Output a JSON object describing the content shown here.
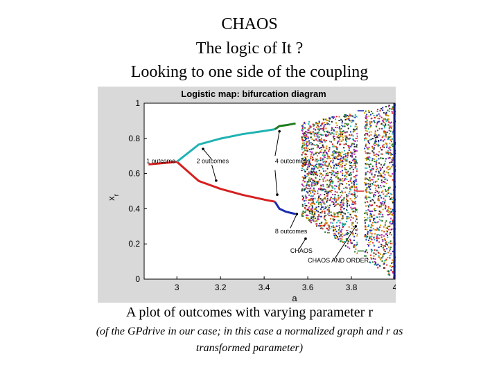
{
  "slide": {
    "title_lines": [
      "CHAOS",
      "The logic of It ?",
      "Looking to one side of the coupling"
    ],
    "caption": "A plot of outcomes with varying parameter r",
    "note_lines": [
      "(of the GPdrive in our case; in this case a normalized graph and r as",
      "transformed parameter)"
    ]
  },
  "chart_data": {
    "type": "scatter",
    "title": "Logistic map: bifurcation diagram",
    "xlabel": "a",
    "ylabel": "x_r",
    "xlim": [
      2.85,
      4.0
    ],
    "ylim": [
      0,
      1
    ],
    "x_ticks": [
      "3",
      "3.2",
      "3.4",
      "3.6",
      "3.8",
      "4"
    ],
    "y_ticks": [
      "0",
      "0.2",
      "0.4",
      "0.6",
      "0.8",
      "1"
    ],
    "grid": false,
    "background": "#d9d9d9",
    "plot_background": "#ffffff",
    "series": [
      {
        "color": "#d62020",
        "points": [
          [
            2.87,
            0.652
          ],
          [
            2.95,
            0.661
          ],
          [
            3.0,
            0.667
          ],
          [
            3.1,
            0.558
          ],
          [
            3.2,
            0.513
          ],
          [
            3.3,
            0.479
          ],
          [
            3.4,
            0.452
          ],
          [
            3.449,
            0.44
          ]
        ]
      },
      {
        "color": "#20b2b2",
        "points": [
          [
            3.0,
            0.667
          ],
          [
            3.1,
            0.765
          ],
          [
            3.2,
            0.799
          ],
          [
            3.3,
            0.824
          ],
          [
            3.4,
            0.842
          ],
          [
            3.449,
            0.852
          ]
        ]
      },
      {
        "color": "#1f7a1f",
        "points": [
          [
            3.449,
            0.852
          ],
          [
            3.47,
            0.87
          ],
          [
            3.5,
            0.875
          ],
          [
            3.544,
            0.885
          ]
        ]
      },
      {
        "color": "#1a2bb0",
        "points": [
          [
            3.449,
            0.44
          ],
          [
            3.47,
            0.4
          ],
          [
            3.5,
            0.383
          ],
          [
            3.544,
            0.37
          ]
        ]
      }
    ],
    "chaos_region": {
      "start": 3.5699,
      "end": 4.0,
      "window": [
        3.828,
        3.857
      ]
    },
    "annotations": [
      {
        "text": "1 outcome",
        "x": 2.86,
        "y": 0.66
      },
      {
        "text": "2 outcomes",
        "x": 3.09,
        "y": 0.66
      },
      {
        "text": "4 outcomes",
        "x": 3.45,
        "y": 0.66
      },
      {
        "text": "8 outcomes",
        "x": 3.45,
        "y": 0.26
      },
      {
        "text": "CHAOS",
        "x": 3.52,
        "y": 0.15
      },
      {
        "text": "CHAOS AND ORDER",
        "x": 3.6,
        "y": 0.095
      }
    ]
  }
}
